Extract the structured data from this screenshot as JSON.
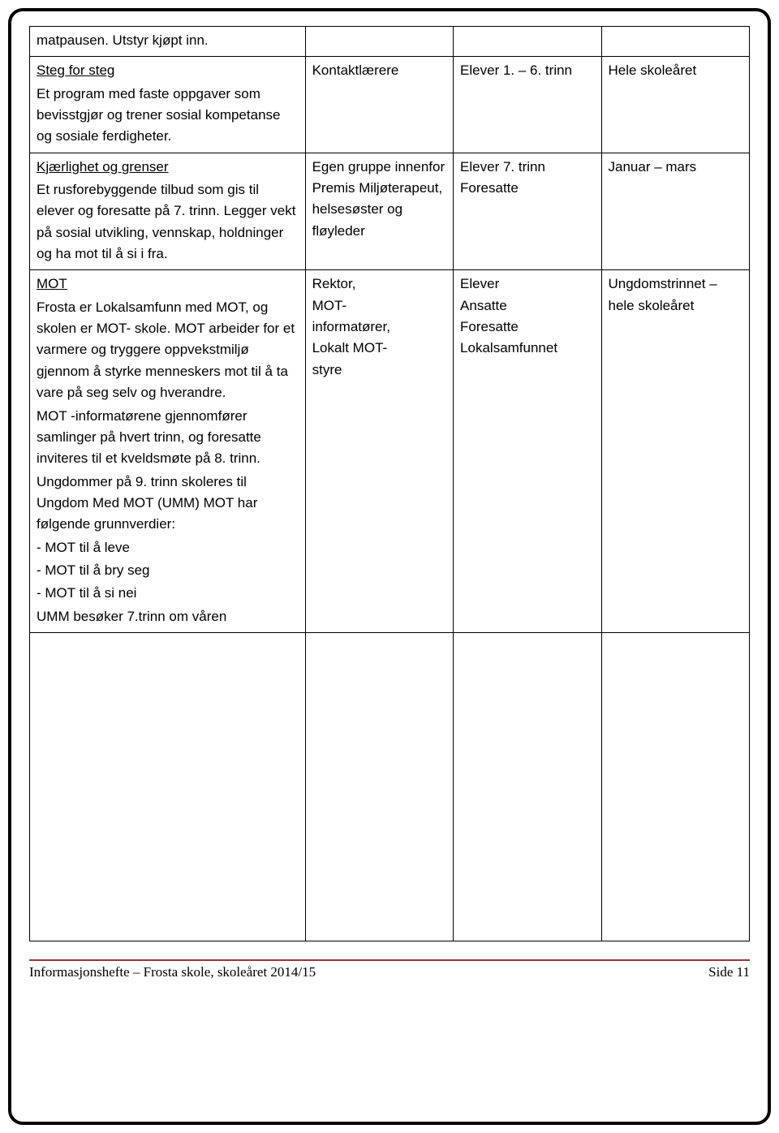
{
  "table": {
    "rows": [
      {
        "col1_parts": [
          {
            "text": "matpausen. Utstyr kjøpt inn.",
            "underline": false
          }
        ],
        "col2": "",
        "col3": "",
        "col4": ""
      },
      {
        "col1_parts": [
          {
            "text": "Steg for steg",
            "underline": true
          },
          {
            "text": "Et program med faste oppgaver som bevisstgjør og trener sosial kompetanse og sosiale ferdigheter.",
            "underline": false
          }
        ],
        "col2": "Kontaktlærere",
        "col3": "Elever 1. – 6. trinn",
        "col4": "Hele skoleåret"
      },
      {
        "col1_parts": [
          {
            "text": "Kjærlighet og grenser",
            "underline": true
          },
          {
            "text": "Et rusforebyggende tilbud som gis til elever og foresatte på 7. trinn. Legger vekt på sosial utvikling, vennskap, holdninger og ha mot til å si i fra.",
            "underline": false
          }
        ],
        "col2": "Egen gruppe innenfor Premis Miljøterapeut, helsesøster og fløyleder",
        "col3": "Elever 7. trinn Foresatte",
        "col4": "Januar – mars"
      },
      {
        "col1_parts": [
          {
            "text": "MOT",
            "underline": true
          },
          {
            "text": "Frosta er Lokalsamfunn med MOT, og skolen er MOT- skole. MOT arbeider for et varmere og tryggere oppvekstmiljø gjennom å styrke menneskers mot til å ta vare på seg selv og hverandre.",
            "underline": false
          },
          {
            "text": "MOT -informatørene gjennomfører samlinger på hvert trinn, og foresatte inviteres til et kveldsmøte på 8. trinn.",
            "underline": false
          },
          {
            "text": "Ungdommer på 9. trinn skoleres til Ungdom Med MOT (UMM) MOT har følgende grunnverdier:",
            "underline": false
          },
          {
            "text": "- MOT til å leve",
            "underline": false
          },
          {
            "text": "- MOT til å bry seg",
            "underline": false
          },
          {
            "text": "- MOT til å si nei",
            "underline": false
          },
          {
            "text": "UMM besøker 7.trinn om våren",
            "underline": false
          }
        ],
        "col2": "Rektor,\nMOT-\ninformatører,\nLokalt MOT-\nstyre",
        "col3": "Elever\nAnsatte\nForesatte\nLokalsamfunnet",
        "col4": "Ungdomstrinnet – hele skoleåret"
      }
    ]
  },
  "footer": {
    "left": "Informasjonshefte – Frosta skole, skoleåret 2014/15",
    "right": "Side 11"
  },
  "colors": {
    "frame_border": "#000000",
    "table_border": "#000000",
    "footer_rule": "#943634",
    "background": "#ffffff",
    "text": "#000000"
  }
}
